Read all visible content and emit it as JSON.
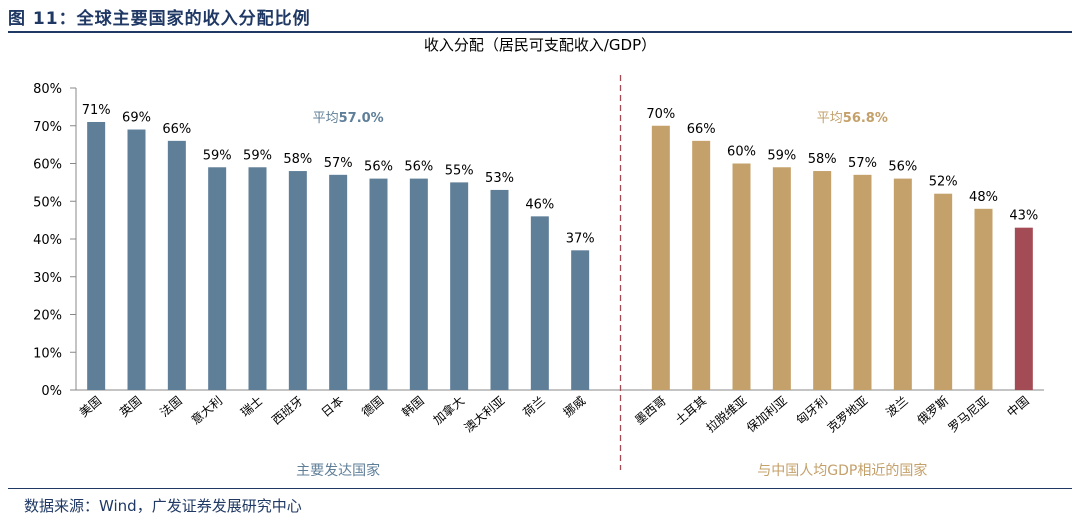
{
  "figure": {
    "title": "图 11：全球主要国家的收入分配比例",
    "source": "数据来源：Wind，广发证券发展研究中心"
  },
  "chart_data": {
    "type": "bar",
    "title": "收入分配（居民可支配收入/GDP）",
    "ylim": [
      0,
      80
    ],
    "yticks": [
      0,
      10,
      20,
      30,
      40,
      50,
      60,
      70,
      80
    ],
    "ytick_labels": [
      "0%",
      "10%",
      "20%",
      "30%",
      "40%",
      "50%",
      "60%",
      "70%",
      "80%"
    ],
    "value_suffix": "%",
    "grid": false,
    "divider": "dashed vertical line between groups",
    "groups": [
      {
        "name": "主要发达国家",
        "average_label_prefix": "平均",
        "average_value": "57.0%",
        "color": "#5f7f99",
        "categories": [
          "美国",
          "英国",
          "法国",
          "意大利",
          "瑞士",
          "西班牙",
          "日本",
          "德国",
          "韩国",
          "加拿大",
          "澳大利亚",
          "荷兰",
          "挪威"
        ],
        "values": [
          71,
          69,
          66,
          59,
          59,
          58,
          57,
          56,
          56,
          55,
          53,
          46,
          37
        ]
      },
      {
        "name": "与中国人均GDP相近的国家",
        "average_label_prefix": "平均",
        "average_value": "56.8%",
        "color": "#c4a06a",
        "highlight": {
          "category": "中国",
          "color": "#a44c55"
        },
        "categories": [
          "墨西哥",
          "土耳其",
          "拉脱维亚",
          "保加利亚",
          "匈牙利",
          "克罗地亚",
          "波兰",
          "俄罗斯",
          "罗马尼亚",
          "中国"
        ],
        "values": [
          70,
          66,
          60,
          59,
          58,
          57,
          56,
          52,
          48,
          43
        ]
      }
    ]
  }
}
